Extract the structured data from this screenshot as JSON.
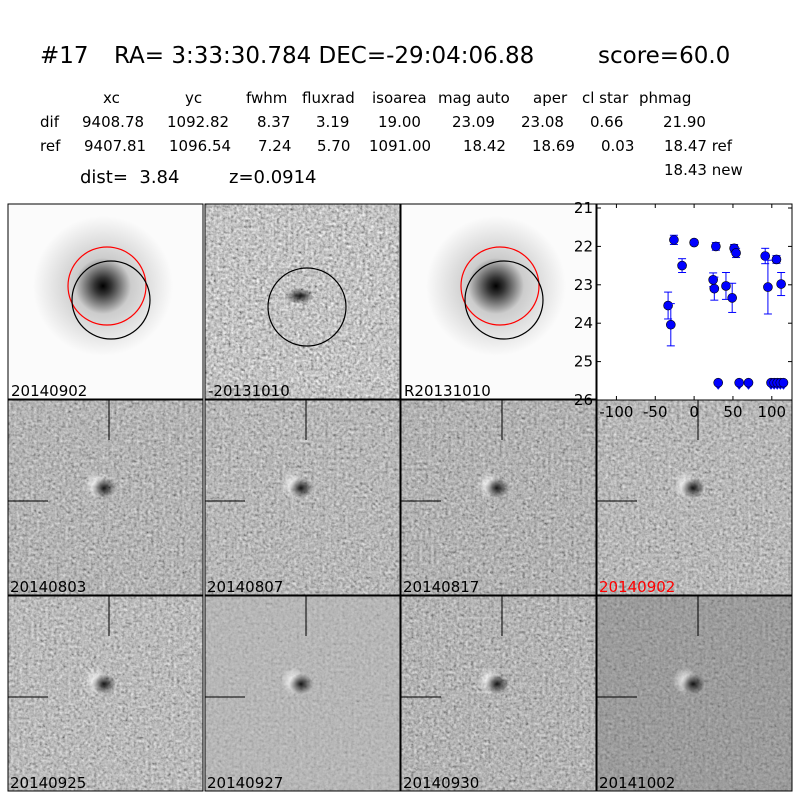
{
  "header": {
    "id": "#17",
    "coords": "RA= 3:33:30.784 DEC=-29:04:06.88",
    "score": "score=60.0"
  },
  "table": {
    "columns": [
      "xc",
      "yc",
      "fwhm",
      "fluxrad",
      "isoarea",
      "mag auto",
      "aper",
      "cl star",
      "phmag"
    ],
    "rows": [
      {
        "label": "dif",
        "values": [
          "9408.78",
          "1092.82",
          "8.37",
          "3.19",
          "19.00",
          "23.09",
          "23.08",
          "0.66",
          "21.90"
        ]
      },
      {
        "label": "ref",
        "values": [
          "9407.81",
          "1096.54",
          "7.24",
          "5.70",
          "1091.00",
          "18.42",
          "18.69",
          "0.03",
          "18.47 ref"
        ]
      }
    ],
    "extra_phmag": "18.43 new",
    "dist": "dist=  3.84",
    "z": "z=0.0914"
  },
  "stamps_top": [
    {
      "label": "20140902",
      "circles": [
        "red",
        "black"
      ]
    },
    {
      "label": "-20131010",
      "circles": [
        "black"
      ]
    },
    {
      "label": "R20131010",
      "circles": [
        "red",
        "black"
      ]
    }
  ],
  "stamps_grid": [
    {
      "label": "20140803",
      "color": "#000000"
    },
    {
      "label": "20140807",
      "color": "#000000"
    },
    {
      "label": "20140817",
      "color": "#000000"
    },
    {
      "label": "20140902",
      "color": "#ff0000"
    },
    {
      "label": "20140925",
      "color": "#000000"
    },
    {
      "label": "20140927",
      "color": "#000000"
    },
    {
      "label": "20140930",
      "color": "#000000"
    },
    {
      "label": "20141002",
      "color": "#000000"
    }
  ],
  "chart_data": {
    "type": "scatter",
    "xlim": [
      -125,
      126
    ],
    "ylim": [
      26,
      21
    ],
    "inverted_y": true,
    "xticks": [
      "-100",
      "-50",
      "0",
      "50",
      "100"
    ],
    "xtick_values": [
      -100,
      -50,
      0,
      50,
      100
    ],
    "yticks": [
      "21",
      "22",
      "23",
      "24",
      "25",
      "26"
    ],
    "ytick_values": [
      21,
      22,
      23,
      24,
      25,
      26
    ],
    "marker_color": "#0000ff",
    "detections": [
      {
        "x": -33.5,
        "y": 23.54,
        "err": 0.35
      },
      {
        "x": -30,
        "y": 24.04,
        "err": 0.55
      },
      {
        "x": -26,
        "y": 21.83,
        "err": 0.12
      },
      {
        "x": -15.5,
        "y": 22.5,
        "err": 0.18
      },
      {
        "x": 0,
        "y": 21.9,
        "err": 0.05
      },
      {
        "x": 24.5,
        "y": 22.87,
        "err": 0.18
      },
      {
        "x": 26,
        "y": 23.1,
        "err": 0.3
      },
      {
        "x": 28,
        "y": 22.0,
        "err": 0.1
      },
      {
        "x": 41,
        "y": 23.03,
        "err": 0.35
      },
      {
        "x": 49,
        "y": 23.34,
        "err": 0.38
      },
      {
        "x": 51.5,
        "y": 22.05,
        "err": 0.1
      },
      {
        "x": 54,
        "y": 22.17,
        "err": 0.12
      },
      {
        "x": 91.5,
        "y": 22.25,
        "err": 0.2
      },
      {
        "x": 95,
        "y": 23.06,
        "err": 0.7
      },
      {
        "x": 106,
        "y": 22.34,
        "err": 0.1
      },
      {
        "x": 112,
        "y": 22.98,
        "err": 0.3
      }
    ],
    "upper_limits": [
      {
        "x": 31,
        "y": 25.55
      },
      {
        "x": 58,
        "y": 25.55
      },
      {
        "x": 70,
        "y": 25.55
      },
      {
        "x": 99,
        "y": 25.55
      },
      {
        "x": 103,
        "y": 25.55
      },
      {
        "x": 107,
        "y": 25.55
      },
      {
        "x": 111,
        "y": 25.55
      },
      {
        "x": 115,
        "y": 25.55
      }
    ]
  }
}
